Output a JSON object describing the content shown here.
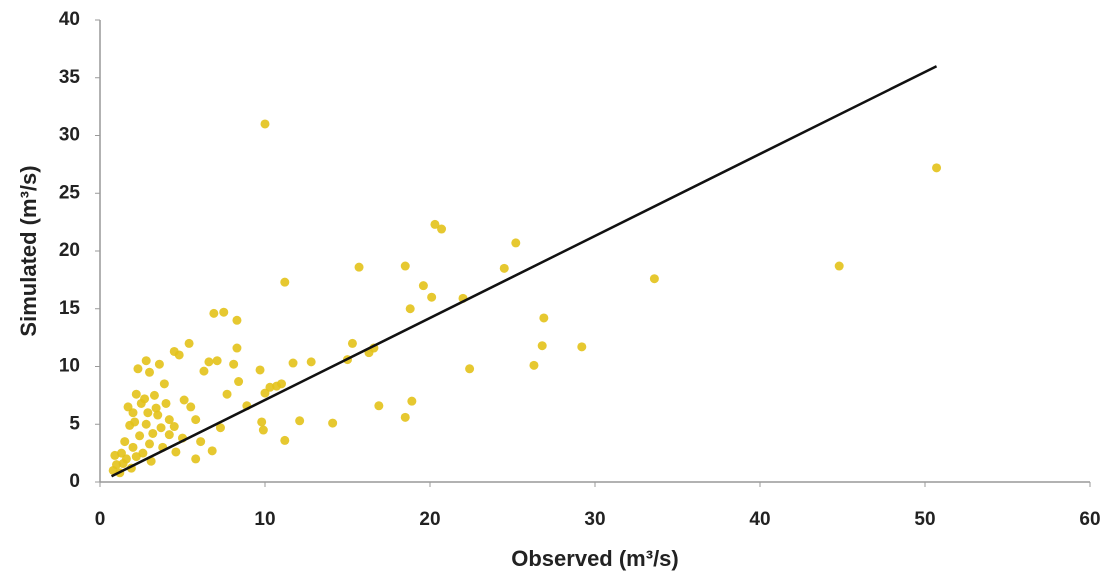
{
  "chart_data": {
    "type": "scatter",
    "x_label": "Observed (m³/s)",
    "y_label": "Simulated (m³/s)",
    "xlim": [
      0,
      60
    ],
    "ylim": [
      0,
      40
    ],
    "xticks": [
      0,
      10,
      20,
      30,
      40,
      50,
      60
    ],
    "yticks": [
      0,
      5,
      10,
      15,
      20,
      25,
      30,
      35,
      40
    ],
    "grid": false,
    "series": [
      {
        "color": "#e3c21a",
        "x": [
          10,
          50.7,
          44.8,
          33.6,
          29.2,
          26.9,
          26.8,
          26.3,
          25.2,
          24.5,
          22.4,
          22,
          20.7,
          20.3,
          20.1,
          19.6,
          18.8,
          18.5,
          18.9,
          18.5,
          16.9,
          16.6,
          16.3,
          15.7,
          15.3,
          15,
          14.1,
          12.8,
          12.1,
          11.7,
          11.2,
          11.2,
          11,
          10.7,
          10.3,
          10,
          9.9,
          9.8,
          9.7,
          8.9,
          8.4,
          8.3,
          8.3,
          7.5,
          6.9,
          7.1,
          6.6,
          6.3,
          7.7,
          8.1,
          7.3,
          6.8,
          6.1,
          5.8,
          5.4,
          5.5,
          5.1,
          4.8,
          4.5,
          4.6,
          4.2,
          3.9,
          3.6,
          3.3,
          3,
          2.8,
          2.3,
          2.5,
          2.2,
          2,
          1.8,
          1.5,
          1.3,
          1,
          0.8,
          1.2,
          1.6,
          2,
          2.4,
          2.8,
          3.2,
          3.5,
          3.8,
          4.2,
          2.6,
          3,
          1.9,
          2.2,
          1.4,
          0.9,
          2.7,
          3.4,
          4,
          4.5,
          5,
          5.8,
          1.7,
          2.1,
          3.1,
          2.9,
          3.7
        ],
        "values": [
          31,
          27.2,
          18.7,
          17.6,
          11.7,
          14.2,
          11.8,
          10.1,
          20.7,
          18.5,
          9.8,
          15.9,
          21.9,
          22.3,
          16,
          17,
          15,
          18.7,
          7,
          5.6,
          6.6,
          11.6,
          11.2,
          18.6,
          12,
          10.6,
          5.1,
          10.4,
          5.3,
          10.3,
          17.3,
          3.6,
          8.5,
          8.3,
          8.2,
          7.7,
          4.5,
          5.2,
          9.7,
          6.6,
          8.7,
          11.6,
          14,
          14.7,
          14.6,
          10.5,
          10.4,
          9.6,
          7.6,
          10.2,
          4.7,
          2.7,
          3.5,
          2,
          12,
          6.5,
          7.1,
          11,
          11.3,
          2.6,
          5.4,
          8.5,
          10.2,
          7.5,
          9.5,
          10.5,
          9.8,
          6.8,
          7.6,
          6,
          4.9,
          3.5,
          2.5,
          1.5,
          1,
          0.8,
          2,
          3,
          4,
          5,
          4.2,
          5.8,
          3,
          4.1,
          2.5,
          3.3,
          1.2,
          2.2,
          1.6,
          2.3,
          7.2,
          6.4,
          6.8,
          4.8,
          3.8,
          5.4,
          6.5,
          5.2,
          1.8,
          6,
          4.7
        ]
      }
    ],
    "trendline": {
      "color": "#111111",
      "x": [
        0.7,
        50.7
      ],
      "values": [
        0.5,
        36
      ]
    }
  }
}
